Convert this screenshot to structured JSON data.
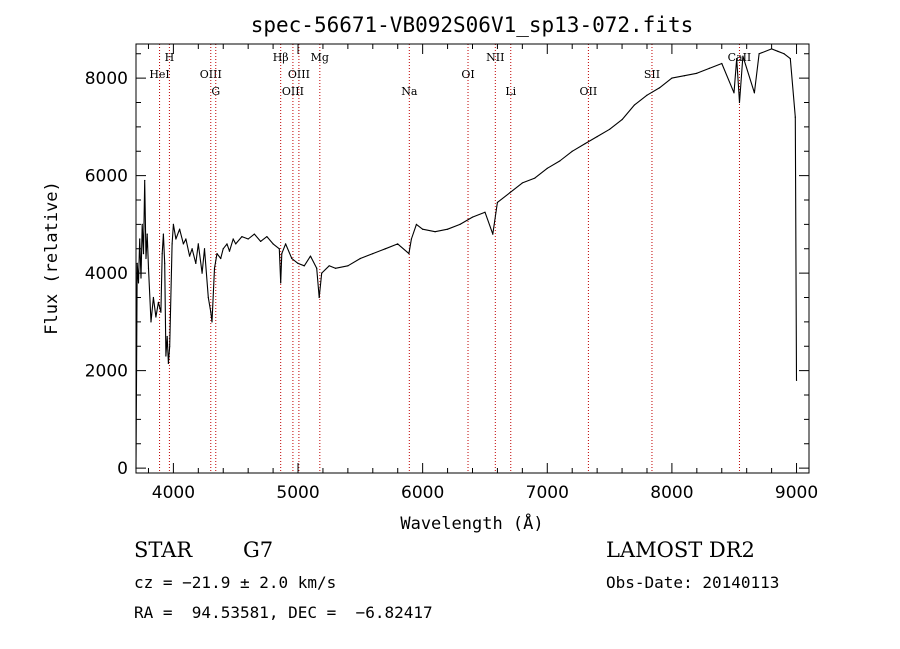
{
  "chart_data": {
    "type": "line",
    "title": "spec-56671-VB092S06V1_sp13-072.fits",
    "xlabel": "Wavelength (Å)",
    "ylabel": "Flux (relative)",
    "xlim": [
      3700,
      9100
    ],
    "ylim": [
      -100,
      8700
    ],
    "xticks": [
      4000,
      5000,
      6000,
      7000,
      8000,
      9000
    ],
    "yticks": [
      0,
      2000,
      4000,
      6000,
      8000
    ],
    "grid": false,
    "series": [
      {
        "color": "#000000",
        "points": [
          [
            3700,
            0
          ],
          [
            3710,
            4200
          ],
          [
            3720,
            3800
          ],
          [
            3730,
            4700
          ],
          [
            3740,
            3900
          ],
          [
            3750,
            5000
          ],
          [
            3760,
            4400
          ],
          [
            3770,
            5900
          ],
          [
            3780,
            4300
          ],
          [
            3790,
            4800
          ],
          [
            3800,
            4100
          ],
          [
            3820,
            3000
          ],
          [
            3840,
            3500
          ],
          [
            3860,
            3100
          ],
          [
            3880,
            3400
          ],
          [
            3900,
            3200
          ],
          [
            3910,
            4400
          ],
          [
            3920,
            4800
          ],
          [
            3930,
            4200
          ],
          [
            3940,
            2300
          ],
          [
            3950,
            2700
          ],
          [
            3960,
            2150
          ],
          [
            3970,
            2500
          ],
          [
            3990,
            4600
          ],
          [
            4000,
            5000
          ],
          [
            4020,
            4700
          ],
          [
            4050,
            4900
          ],
          [
            4080,
            4600
          ],
          [
            4100,
            4700
          ],
          [
            4130,
            4350
          ],
          [
            4150,
            4500
          ],
          [
            4180,
            4200
          ],
          [
            4200,
            4600
          ],
          [
            4230,
            4000
          ],
          [
            4250,
            4500
          ],
          [
            4280,
            3500
          ],
          [
            4300,
            3200
          ],
          [
            4310,
            3000
          ],
          [
            4330,
            4100
          ],
          [
            4350,
            4400
          ],
          [
            4380,
            4300
          ],
          [
            4400,
            4500
          ],
          [
            4430,
            4600
          ],
          [
            4450,
            4450
          ],
          [
            4480,
            4700
          ],
          [
            4500,
            4600
          ],
          [
            4550,
            4750
          ],
          [
            4600,
            4700
          ],
          [
            4650,
            4800
          ],
          [
            4700,
            4650
          ],
          [
            4750,
            4750
          ],
          [
            4800,
            4600
          ],
          [
            4850,
            4500
          ],
          [
            4861,
            3800
          ],
          [
            4870,
            4400
          ],
          [
            4900,
            4600
          ],
          [
            4950,
            4300
          ],
          [
            5000,
            4200
          ],
          [
            5050,
            4150
          ],
          [
            5100,
            4350
          ],
          [
            5150,
            4100
          ],
          [
            5170,
            3500
          ],
          [
            5190,
            4000
          ],
          [
            5250,
            4150
          ],
          [
            5300,
            4100
          ],
          [
            5400,
            4150
          ],
          [
            5500,
            4300
          ],
          [
            5600,
            4400
          ],
          [
            5700,
            4500
          ],
          [
            5800,
            4600
          ],
          [
            5890,
            4400
          ],
          [
            5910,
            4700
          ],
          [
            5950,
            5000
          ],
          [
            6000,
            4900
          ],
          [
            6100,
            4850
          ],
          [
            6200,
            4900
          ],
          [
            6300,
            5000
          ],
          [
            6400,
            5150
          ],
          [
            6500,
            5250
          ],
          [
            6563,
            4800
          ],
          [
            6600,
            5450
          ],
          [
            6700,
            5650
          ],
          [
            6800,
            5850
          ],
          [
            6900,
            5950
          ],
          [
            7000,
            6150
          ],
          [
            7100,
            6300
          ],
          [
            7200,
            6500
          ],
          [
            7300,
            6650
          ],
          [
            7400,
            6800
          ],
          [
            7500,
            6950
          ],
          [
            7600,
            7150
          ],
          [
            7700,
            7450
          ],
          [
            7800,
            7650
          ],
          [
            7900,
            7800
          ],
          [
            8000,
            8000
          ],
          [
            8100,
            8050
          ],
          [
            8200,
            8100
          ],
          [
            8300,
            8200
          ],
          [
            8400,
            8300
          ],
          [
            8498,
            7700
          ],
          [
            8520,
            8400
          ],
          [
            8542,
            7500
          ],
          [
            8570,
            8450
          ],
          [
            8662,
            7700
          ],
          [
            8700,
            8500
          ],
          [
            8800,
            8600
          ],
          [
            8850,
            8550
          ],
          [
            8900,
            8500
          ],
          [
            8950,
            8400
          ],
          [
            8990,
            7200
          ],
          [
            9000,
            1800
          ]
        ]
      }
    ],
    "line_markers": [
      {
        "label": "HeI",
        "wavelength": 3889,
        "level": 2
      },
      {
        "label": "H",
        "wavelength": 3968,
        "level": 1
      },
      {
        "label": "OIII",
        "wavelength": 4300,
        "level": 2
      },
      {
        "label": "G",
        "wavelength": 4340,
        "level": 3
      },
      {
        "label": "Hβ",
        "wavelength": 4861,
        "level": 1
      },
      {
        "label": "OIII",
        "wavelength": 4959,
        "level": 3
      },
      {
        "label": "OIII",
        "wavelength": 5007,
        "level": 2
      },
      {
        "label": "Mg",
        "wavelength": 5175,
        "level": 1
      },
      {
        "label": "Na",
        "wavelength": 5893,
        "level": 3
      },
      {
        "label": "OI",
        "wavelength": 6364,
        "level": 2
      },
      {
        "label": "NII",
        "wavelength": 6583,
        "level": 1
      },
      {
        "label": "Li",
        "wavelength": 6707,
        "level": 3
      },
      {
        "label": "OII",
        "wavelength": 7330,
        "level": 3
      },
      {
        "label": "SII",
        "wavelength": 7840,
        "level": 2
      },
      {
        "label": "CaII",
        "wavelength": 8542,
        "level": 1
      }
    ],
    "marker_color": "#c00000"
  },
  "info": {
    "object_class": "STAR",
    "subclass": "G7",
    "survey": "LAMOST DR2",
    "cz": "cz = −21.9 ± 2.0 km/s",
    "obs_date": "Obs-Date: 20140113",
    "coords": "RA =  94.53581, DEC =  −6.82417"
  }
}
